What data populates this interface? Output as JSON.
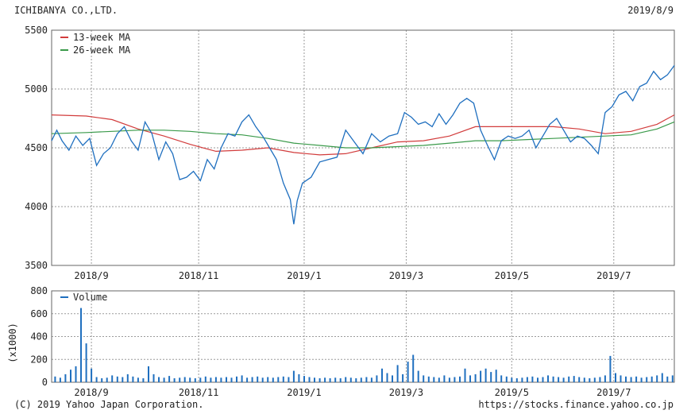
{
  "header": {
    "company": "ICHIBANYA CO.,LTD.",
    "date": "2019/8/9"
  },
  "footer": {
    "copyright": "(C) 2019 Yahoo Japan Corporation.",
    "source": "https://stocks.finance.yahoo.co.jp"
  },
  "colors": {
    "price": "#1f6fbf",
    "ma13": "#d23c3c",
    "ma26": "#3a9a4a",
    "volume": "#1f6fbf",
    "grid": "#9a9a9a"
  },
  "chart_data": [
    {
      "type": "line",
      "xlabel": "",
      "ylabel": "",
      "x_ticks": [
        "2018/9",
        "2018/11",
        "2019/1",
        "2019/3",
        "2019/5",
        "2019/7"
      ],
      "x_tick_days": [
        23,
        85,
        146,
        205,
        266,
        325
      ],
      "x_range_days": [
        0,
        360
      ],
      "y_ticks": [
        3500,
        4000,
        4500,
        5000,
        5500
      ],
      "ylim": [
        3500,
        5500
      ],
      "grid": true,
      "legend": "top-left",
      "series": [
        {
          "name": "13-week MA",
          "day": [
            0,
            20,
            35,
            50,
            65,
            80,
            95,
            110,
            125,
            140,
            155,
            170,
            185,
            200,
            215,
            230,
            245,
            260,
            275,
            290,
            305,
            320,
            335,
            350,
            360
          ],
          "values": [
            4780,
            4770,
            4740,
            4660,
            4600,
            4530,
            4470,
            4480,
            4500,
            4460,
            4440,
            4450,
            4500,
            4550,
            4560,
            4600,
            4680,
            4680,
            4680,
            4680,
            4660,
            4620,
            4640,
            4700,
            4780
          ]
        },
        {
          "name": "26-week MA",
          "day": [
            0,
            20,
            35,
            50,
            65,
            80,
            95,
            110,
            125,
            140,
            155,
            170,
            185,
            200,
            215,
            230,
            245,
            260,
            275,
            290,
            305,
            320,
            335,
            350,
            360
          ],
          "values": [
            4620,
            4630,
            4640,
            4650,
            4650,
            4640,
            4620,
            4610,
            4580,
            4540,
            4520,
            4500,
            4500,
            4510,
            4520,
            4540,
            4560,
            4560,
            4570,
            4580,
            4590,
            4600,
            4610,
            4660,
            4720
          ]
        },
        {
          "name": "",
          "day": [
            0,
            3,
            6,
            10,
            14,
            18,
            22,
            26,
            30,
            34,
            38,
            42,
            46,
            50,
            54,
            58,
            62,
            66,
            70,
            74,
            78,
            82,
            86,
            90,
            94,
            98,
            102,
            106,
            110,
            114,
            118,
            122,
            126,
            130,
            134,
            138,
            140,
            142,
            145,
            150,
            155,
            160,
            165,
            170,
            175,
            180,
            185,
            190,
            195,
            200,
            204,
            208,
            212,
            216,
            220,
            224,
            228,
            232,
            236,
            240,
            244,
            248,
            252,
            256,
            260,
            264,
            268,
            272,
            276,
            280,
            284,
            288,
            292,
            296,
            300,
            304,
            308,
            312,
            316,
            320,
            324,
            328,
            332,
            336,
            340,
            344,
            348,
            352,
            356,
            360
          ],
          "values": [
            4560,
            4650,
            4560,
            4480,
            4600,
            4520,
            4580,
            4350,
            4450,
            4500,
            4620,
            4680,
            4560,
            4480,
            4720,
            4620,
            4400,
            4550,
            4450,
            4230,
            4250,
            4300,
            4220,
            4400,
            4320,
            4500,
            4620,
            4600,
            4720,
            4780,
            4680,
            4600,
            4500,
            4400,
            4200,
            4060,
            3850,
            4050,
            4200,
            4250,
            4380,
            4400,
            4420,
            4650,
            4550,
            4450,
            4620,
            4550,
            4600,
            4620,
            4800,
            4760,
            4700,
            4720,
            4680,
            4790,
            4700,
            4780,
            4880,
            4920,
            4880,
            4650,
            4520,
            4400,
            4560,
            4600,
            4580,
            4600,
            4650,
            4500,
            4600,
            4700,
            4750,
            4650,
            4550,
            4600,
            4580,
            4520,
            4450,
            4800,
            4850,
            4950,
            4980,
            4900,
            5020,
            5050,
            5150,
            5080,
            5120,
            5200
          ]
        }
      ]
    },
    {
      "type": "bar",
      "xlabel": "",
      "ylabel": "(x1000)",
      "x_ticks": [
        "2018/9",
        "2018/11",
        "2019/1",
        "2019/3",
        "2019/5",
        "2019/7"
      ],
      "y_ticks": [
        0,
        200,
        400,
        600,
        800
      ],
      "ylim": [
        0,
        800
      ],
      "grid": true,
      "legend": "top-left",
      "series": [
        {
          "name": "Volume",
          "day": [
            2,
            5,
            8,
            11,
            14,
            17,
            20,
            23,
            26,
            29,
            32,
            35,
            38,
            41,
            44,
            47,
            50,
            53,
            56,
            59,
            62,
            65,
            68,
            71,
            74,
            77,
            80,
            83,
            86,
            89,
            92,
            95,
            98,
            101,
            104,
            107,
            110,
            113,
            116,
            119,
            122,
            125,
            128,
            131,
            134,
            137,
            140,
            143,
            146,
            149,
            152,
            155,
            158,
            161,
            164,
            167,
            170,
            173,
            176,
            179,
            182,
            185,
            188,
            191,
            194,
            197,
            200,
            203,
            206,
            209,
            212,
            215,
            218,
            221,
            224,
            227,
            230,
            233,
            236,
            239,
            242,
            245,
            248,
            251,
            254,
            257,
            260,
            263,
            266,
            269,
            272,
            275,
            278,
            281,
            284,
            287,
            290,
            293,
            296,
            299,
            302,
            305,
            308,
            311,
            314,
            317,
            320,
            323,
            326,
            329,
            332,
            335,
            338,
            341,
            344,
            347,
            350,
            353,
            356,
            359
          ],
          "values": [
            50,
            40,
            70,
            110,
            140,
            650,
            340,
            120,
            45,
            35,
            40,
            60,
            50,
            45,
            70,
            50,
            40,
            35,
            140,
            70,
            45,
            40,
            55,
            35,
            40,
            45,
            40,
            35,
            40,
            50,
            40,
            45,
            40,
            45,
            40,
            50,
            60,
            40,
            45,
            50,
            40,
            45,
            40,
            45,
            50,
            45,
            100,
            70,
            55,
            45,
            40,
            35,
            40,
            35,
            40,
            35,
            45,
            40,
            35,
            40,
            45,
            40,
            60,
            120,
            80,
            60,
            150,
            70,
            180,
            240,
            100,
            60,
            50,
            45,
            40,
            60,
            40,
            45,
            50,
            120,
            60,
            70,
            100,
            120,
            90,
            110,
            60,
            50,
            40,
            35,
            40,
            45,
            50,
            40,
            45,
            60,
            50,
            45,
            40,
            50,
            55,
            45,
            40,
            35,
            40,
            45,
            60,
            230,
            80,
            60,
            50,
            45,
            50,
            40,
            45,
            50,
            60,
            80,
            50,
            60
          ]
        }
      ]
    }
  ]
}
